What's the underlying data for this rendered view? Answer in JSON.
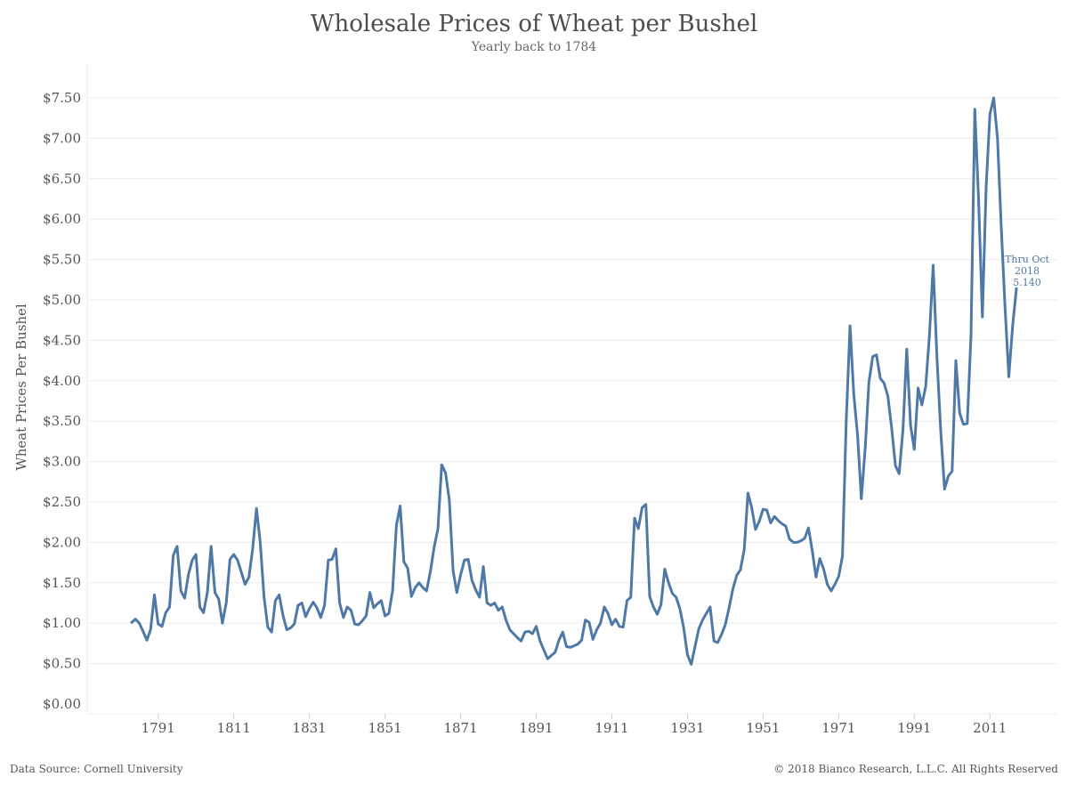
{
  "header": {
    "title": "Wholesale Prices of Wheat per Bushel",
    "subtitle": "Yearly back to 1784"
  },
  "footer": {
    "source": "Data Source: Cornell University",
    "copyright": "© 2018 Bianco Research, L.L.C. All Rights Reserved"
  },
  "colors": {
    "line": "#4e79a7",
    "grid": "#ebebeb",
    "text": "#555555"
  },
  "chart_data": {
    "type": "line",
    "title": "Wholesale Prices of Wheat per Bushel",
    "subtitle": "Yearly back to 1784",
    "ylabel": "Wheat Prices Per Bushel",
    "xlabel": "",
    "xlim": [
      1784,
      2018
    ],
    "ylim": [
      0,
      7.5
    ],
    "grid": "horizontal",
    "legend": "none",
    "x_ticks": [
      1791,
      1811,
      1831,
      1851,
      1871,
      1891,
      1911,
      1931,
      1951,
      1971,
      1991,
      2011
    ],
    "y_ticks": [
      "$0.00",
      "$0.50",
      "$1.00",
      "$1.50",
      "$2.00",
      "$2.50",
      "$3.00",
      "$3.50",
      "$4.00",
      "$4.50",
      "$5.00",
      "$5.50",
      "$6.00",
      "$6.50",
      "$7.00",
      "$7.50"
    ],
    "y_tick_values": [
      0,
      0.5,
      1,
      1.5,
      2,
      2.5,
      3,
      3.5,
      4,
      4.5,
      5,
      5.5,
      6,
      6.5,
      7,
      7.5
    ],
    "annotation": {
      "lines": [
        "Thru Oct",
        "2018",
        "5.140"
      ],
      "x": 2018,
      "y": 5.14
    },
    "series": [
      {
        "x": [
          1784,
          1785,
          1786,
          1787,
          1788,
          1789,
          1790,
          1791,
          1792,
          1793,
          1794,
          1795,
          1796,
          1797,
          1798,
          1799,
          1800,
          1801,
          1802,
          1803,
          1804,
          1805,
          1806,
          1807,
          1808,
          1809,
          1810,
          1811,
          1812,
          1813,
          1814,
          1815,
          1816,
          1817,
          1818,
          1819,
          1820,
          1821,
          1822,
          1823,
          1824,
          1825,
          1826,
          1827,
          1828,
          1829,
          1830,
          1831,
          1832,
          1833,
          1834,
          1835,
          1836,
          1837,
          1838,
          1839,
          1840,
          1841,
          1842,
          1843,
          1844,
          1845,
          1846,
          1847,
          1848,
          1849,
          1850,
          1851,
          1852,
          1853,
          1854,
          1855,
          1856,
          1857,
          1858,
          1859,
          1860,
          1861,
          1862,
          1863,
          1864,
          1865,
          1866,
          1867,
          1868,
          1869,
          1870,
          1871,
          1872,
          1873,
          1874,
          1875,
          1876,
          1877,
          1878,
          1879,
          1880,
          1881,
          1882,
          1883,
          1884,
          1885,
          1886,
          1887,
          1888,
          1889,
          1890,
          1891,
          1892,
          1893,
          1894,
          1895,
          1896,
          1897,
          1898,
          1899,
          1900,
          1901,
          1902,
          1903,
          1904,
          1905,
          1906,
          1907,
          1908,
          1909,
          1910,
          1911,
          1912,
          1913,
          1914,
          1915,
          1916,
          1917,
          1918,
          1919,
          1920,
          1921,
          1922,
          1923,
          1924,
          1925,
          1926,
          1927,
          1928,
          1929,
          1930,
          1931,
          1932,
          1933,
          1934,
          1935,
          1936,
          1937,
          1938,
          1939,
          1940,
          1941,
          1942,
          1943,
          1944,
          1945,
          1946,
          1947,
          1948,
          1949,
          1950,
          1951,
          1952,
          1953,
          1954,
          1955,
          1956,
          1957,
          1958,
          1959,
          1960,
          1961,
          1962,
          1963,
          1964,
          1965,
          1966,
          1967,
          1968,
          1969,
          1970,
          1971,
          1972,
          1973,
          1974,
          1975,
          1976,
          1977,
          1978,
          1979,
          1980,
          1981,
          1982,
          1983,
          1984,
          1985,
          1986,
          1987,
          1988,
          1989,
          1990,
          1991,
          1992,
          1993,
          1994,
          1995,
          1996,
          1997,
          1998,
          1999,
          2000,
          2001,
          2002,
          2003,
          2004,
          2005,
          2006,
          2007,
          2008,
          2009,
          2010,
          2011,
          2012,
          2013,
          2014,
          2015,
          2016,
          2017,
          2018
        ],
        "y": [
          1.01,
          1.05,
          1.0,
          0.9,
          0.79,
          0.92,
          1.35,
          0.99,
          0.96,
          1.13,
          1.2,
          1.84,
          1.95,
          1.4,
          1.31,
          1.6,
          1.78,
          1.85,
          1.2,
          1.13,
          1.38,
          1.95,
          1.38,
          1.3,
          1.0,
          1.25,
          1.79,
          1.85,
          1.78,
          1.63,
          1.48,
          1.57,
          1.92,
          2.42,
          2.0,
          1.32,
          0.95,
          0.89,
          1.28,
          1.35,
          1.1,
          0.92,
          0.94,
          0.99,
          1.22,
          1.25,
          1.08,
          1.18,
          1.26,
          1.19,
          1.07,
          1.22,
          1.78,
          1.79,
          1.92,
          1.25,
          1.07,
          1.2,
          1.16,
          0.99,
          0.98,
          1.03,
          1.09,
          1.38,
          1.19,
          1.24,
          1.28,
          1.09,
          1.12,
          1.4,
          2.21,
          2.45,
          1.76,
          1.68,
          1.33,
          1.44,
          1.5,
          1.44,
          1.4,
          1.64,
          1.94,
          2.17,
          2.96,
          2.86,
          2.53,
          1.65,
          1.38,
          1.6,
          1.78,
          1.79,
          1.53,
          1.41,
          1.32,
          1.7,
          1.25,
          1.22,
          1.25,
          1.16,
          1.2,
          1.04,
          0.92,
          0.87,
          0.82,
          0.78,
          0.89,
          0.9,
          0.87,
          0.96,
          0.78,
          0.67,
          0.56,
          0.6,
          0.64,
          0.79,
          0.89,
          0.71,
          0.7,
          0.72,
          0.74,
          0.79,
          1.04,
          1.01,
          0.8,
          0.92,
          1.0,
          1.2,
          1.12,
          0.98,
          1.05,
          0.96,
          0.95,
          1.28,
          1.32,
          2.3,
          2.17,
          2.43,
          2.47,
          1.33,
          1.2,
          1.11,
          1.23,
          1.67,
          1.5,
          1.37,
          1.32,
          1.18,
          0.94,
          0.61,
          0.49,
          0.71,
          0.93,
          1.04,
          1.12,
          1.2,
          0.78,
          0.76,
          0.86,
          0.98,
          1.19,
          1.42,
          1.59,
          1.66,
          1.91,
          2.61,
          2.43,
          2.16,
          2.26,
          2.41,
          2.4,
          2.24,
          2.32,
          2.27,
          2.23,
          2.2,
          2.04,
          2.0,
          2.0,
          2.02,
          2.05,
          2.18,
          1.9,
          1.57,
          1.8,
          1.67,
          1.48,
          1.4,
          1.48,
          1.58,
          1.83,
          3.5,
          4.68,
          3.83,
          3.32,
          2.54,
          3.16,
          3.98,
          4.3,
          4.32,
          4.03,
          3.97,
          3.81,
          3.42,
          2.95,
          2.85,
          3.4,
          4.39,
          3.45,
          3.15,
          3.91,
          3.7,
          3.93,
          4.56,
          5.43,
          4.28,
          3.38,
          2.66,
          2.82,
          2.88,
          4.25,
          3.6,
          3.46,
          3.47,
          4.56,
          7.36,
          6.25,
          4.79,
          6.4,
          7.3,
          7.5,
          7.0,
          5.9,
          4.9,
          4.05,
          4.68,
          5.14
        ]
      }
    ]
  }
}
